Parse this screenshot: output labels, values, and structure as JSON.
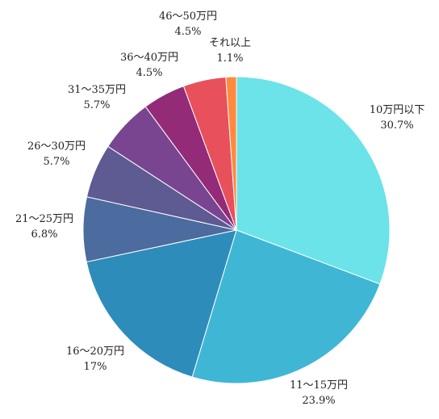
{
  "chart_data": {
    "type": "pie",
    "title": "",
    "start_angle_deg": 0,
    "direction": "clockwise",
    "slices": [
      {
        "label": "10万円以下",
        "value_text": "30.7%",
        "value": 30.7,
        "color": "#6BE3E8"
      },
      {
        "label": "11〜15万円",
        "value_text": "23.9%",
        "value": 23.9,
        "color": "#40B6D5"
      },
      {
        "label": "16〜20万円",
        "value_text": "17%",
        "value": 17.0,
        "color": "#2E8CBA"
      },
      {
        "label": "21〜25万円",
        "value_text": "6.8%",
        "value": 6.8,
        "color": "#4C6B9E"
      },
      {
        "label": "26〜30万円",
        "value_text": "5.7%",
        "value": 5.7,
        "color": "#5E5A92"
      },
      {
        "label": "31〜35万円",
        "value_text": "5.7%",
        "value": 5.7,
        "color": "#7A4590"
      },
      {
        "label": "36〜40万円",
        "value_text": "4.5%",
        "value": 4.5,
        "color": "#932B78"
      },
      {
        "label": "46〜50万円",
        "value_text": "4.5%",
        "value": 4.5,
        "color": "#E8505B"
      },
      {
        "label": "それ以上",
        "value_text": "1.1%",
        "value": 1.1,
        "color": "#FF8A3D"
      }
    ]
  }
}
